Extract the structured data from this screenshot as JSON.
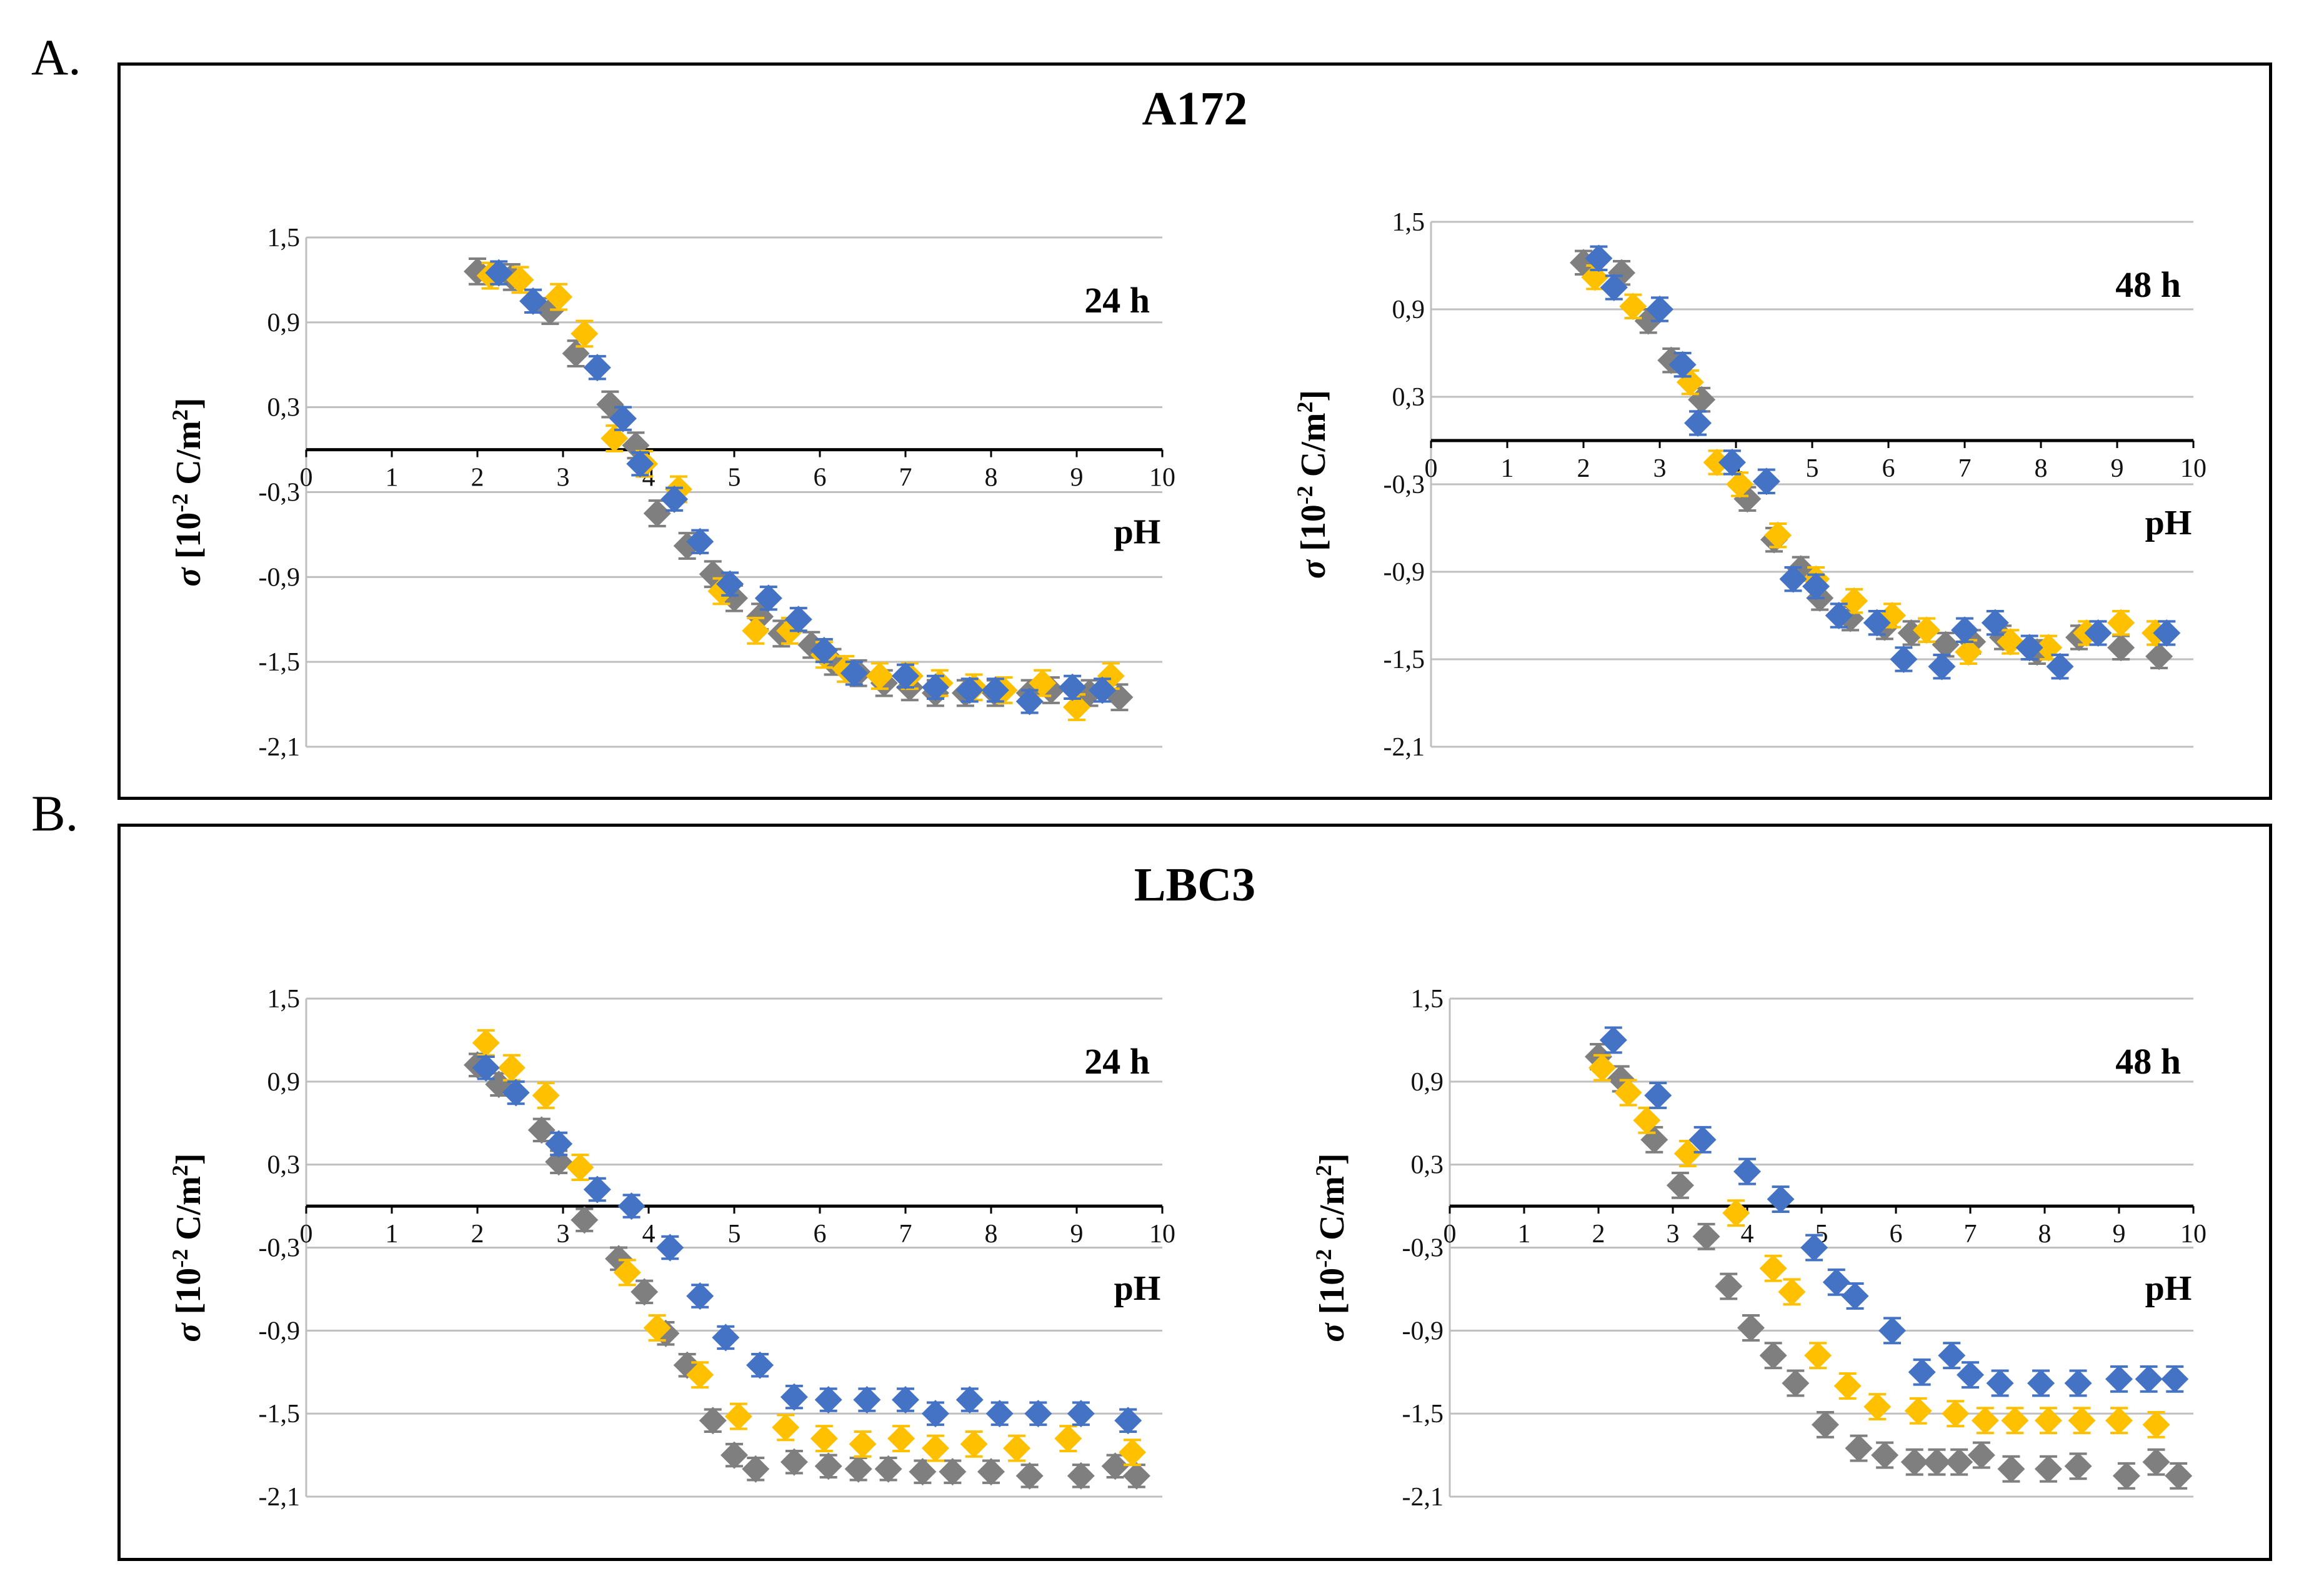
{
  "figure": {
    "panel_a_letter": "A.",
    "panel_b_letter": "B.",
    "panel_a_title": "A172",
    "panel_b_title": "LBC3"
  },
  "colors": {
    "blue": "#4472C4",
    "orange": "#FFC000",
    "gray": "#7F7F7F"
  },
  "chart_data": [
    {
      "id": "a172_24h",
      "type": "scatter",
      "title": "24 h",
      "xlabel": "pH",
      "ylabel": "σ [10-2 C/m2]",
      "xlim": [
        0,
        10
      ],
      "ylim": [
        -2.1,
        1.5
      ],
      "xticks": [
        "0",
        "1",
        "2",
        "3",
        "4",
        "5",
        "6",
        "7",
        "8",
        "9",
        "10"
      ],
      "yticks": [
        "1,5",
        "0,9",
        "0,3",
        "-0,3",
        "-0,9",
        "-1,5",
        "-2,1"
      ],
      "series": [
        {
          "name": "gray",
          "color": "#7F7F7F",
          "err": 0.09,
          "x": [
            2.0,
            2.4,
            2.85,
            3.15,
            3.55,
            3.85,
            4.1,
            4.45,
            4.75,
            5.0,
            5.3,
            5.55,
            5.9,
            6.15,
            6.45,
            6.75,
            7.05,
            7.35,
            7.7,
            8.05,
            8.45,
            8.7,
            9.15,
            9.5
          ],
          "y": [
            1.26,
            1.22,
            0.98,
            0.68,
            0.32,
            0.03,
            -0.45,
            -0.68,
            -0.88,
            -1.05,
            -1.18,
            -1.3,
            -1.38,
            -1.5,
            -1.58,
            -1.65,
            -1.68,
            -1.72,
            -1.72,
            -1.72,
            -1.72,
            -1.7,
            -1.72,
            -1.75
          ]
        },
        {
          "name": "orange",
          "color": "#FFC000",
          "err": 0.09,
          "x": [
            2.15,
            2.5,
            2.95,
            3.25,
            3.6,
            3.95,
            4.35,
            4.85,
            5.25,
            5.65,
            6.05,
            6.3,
            6.7,
            7.05,
            7.4,
            7.8,
            8.15,
            8.6,
            9.0,
            9.4
          ],
          "y": [
            1.23,
            1.2,
            1.08,
            0.82,
            0.08,
            -0.1,
            -0.28,
            -1.0,
            -1.28,
            -1.28,
            -1.45,
            -1.55,
            -1.6,
            -1.6,
            -1.65,
            -1.68,
            -1.7,
            -1.65,
            -1.82,
            -1.6
          ]
        },
        {
          "name": "blue",
          "color": "#4472C4",
          "err": 0.08,
          "x": [
            2.25,
            2.65,
            3.4,
            3.7,
            3.9,
            4.3,
            4.6,
            4.95,
            5.4,
            5.75,
            6.05,
            6.4,
            7.0,
            7.35,
            7.75,
            8.05,
            8.45,
            8.95,
            9.3
          ],
          "y": [
            1.25,
            1.05,
            0.58,
            0.22,
            -0.1,
            -0.35,
            -0.65,
            -0.95,
            -1.05,
            -1.2,
            -1.42,
            -1.58,
            -1.6,
            -1.68,
            -1.7,
            -1.7,
            -1.78,
            -1.68,
            -1.7
          ]
        }
      ]
    },
    {
      "id": "a172_48h",
      "type": "scatter",
      "title": "48 h",
      "xlabel": "pH",
      "ylabel": "σ [10-2 C/m2]",
      "xlim": [
        0,
        10
      ],
      "ylim": [
        -2.1,
        1.5
      ],
      "xticks": [
        "0",
        "1",
        "2",
        "3",
        "4",
        "5",
        "6",
        "7",
        "8",
        "9",
        "10"
      ],
      "yticks": [
        "1,5",
        "0,9",
        "0,3",
        "-0,3",
        "-0,9",
        "-1,5",
        "-2,1"
      ],
      "series": [
        {
          "name": "gray",
          "color": "#7F7F7F",
          "err": 0.08,
          "x": [
            2.0,
            2.5,
            2.85,
            3.15,
            3.55,
            4.15,
            4.5,
            4.85,
            5.1,
            5.5,
            5.95,
            6.3,
            6.75,
            7.1,
            7.5,
            7.95,
            8.5,
            9.05,
            9.55
          ],
          "y": [
            1.22,
            1.15,
            0.82,
            0.55,
            0.28,
            -0.4,
            -0.68,
            -0.88,
            -1.08,
            -1.22,
            -1.28,
            -1.32,
            -1.4,
            -1.38,
            -1.35,
            -1.45,
            -1.35,
            -1.42,
            -1.48
          ]
        },
        {
          "name": "orange",
          "color": "#FFC000",
          "err": 0.08,
          "x": [
            2.15,
            2.65,
            3.4,
            3.75,
            4.05,
            4.55,
            5.05,
            5.55,
            6.05,
            6.5,
            7.05,
            7.6,
            8.1,
            8.6,
            9.05,
            9.5
          ],
          "y": [
            1.12,
            0.92,
            0.4,
            -0.15,
            -0.3,
            -0.65,
            -0.95,
            -1.1,
            -1.2,
            -1.3,
            -1.45,
            -1.38,
            -1.42,
            -1.32,
            -1.25,
            -1.32
          ]
        },
        {
          "name": "blue",
          "color": "#4472C4",
          "err": 0.08,
          "x": [
            2.2,
            2.4,
            3.0,
            3.3,
            3.5,
            3.95,
            4.4,
            4.75,
            5.05,
            5.35,
            5.85,
            6.2,
            6.7,
            7.0,
            7.4,
            7.85,
            8.25,
            8.75,
            9.65
          ],
          "y": [
            1.25,
            1.05,
            0.9,
            0.52,
            0.12,
            -0.15,
            -0.28,
            -0.95,
            -1.0,
            -1.2,
            -1.25,
            -1.5,
            -1.55,
            -1.3,
            -1.25,
            -1.42,
            -1.55,
            -1.32,
            -1.32
          ]
        }
      ]
    },
    {
      "id": "lbc3_24h",
      "type": "scatter",
      "title": "24 h",
      "xlabel": "pH",
      "ylabel": "σ [10-2 C/m2]",
      "xlim": [
        0,
        10
      ],
      "ylim": [
        -2.1,
        1.5
      ],
      "xticks": [
        "0",
        "1",
        "2",
        "3",
        "4",
        "5",
        "6",
        "7",
        "8",
        "9",
        "10"
      ],
      "yticks": [
        "1,5",
        "0,9",
        "0,3",
        "-0,3",
        "-0,9",
        "-1,5",
        "-2,1"
      ],
      "series": [
        {
          "name": "gray",
          "color": "#7F7F7F",
          "err": 0.08,
          "x": [
            2.0,
            2.25,
            2.75,
            2.95,
            3.25,
            3.65,
            3.95,
            4.2,
            4.45,
            4.75,
            5.0,
            5.25,
            5.7,
            6.1,
            6.45,
            6.8,
            7.2,
            7.55,
            8.0,
            8.45,
            9.05,
            9.45,
            9.7
          ],
          "y": [
            1.02,
            0.88,
            0.55,
            0.32,
            -0.1,
            -0.38,
            -0.62,
            -0.92,
            -1.15,
            -1.55,
            -1.8,
            -1.9,
            -1.85,
            -1.88,
            -1.9,
            -1.9,
            -1.92,
            -1.92,
            -1.92,
            -1.95,
            -1.95,
            -1.88,
            -1.95
          ]
        },
        {
          "name": "orange",
          "color": "#FFC000",
          "err": 0.09,
          "x": [
            2.1,
            2.4,
            2.8,
            3.2,
            3.75,
            4.1,
            4.6,
            5.05,
            5.6,
            6.05,
            6.5,
            6.95,
            7.35,
            7.8,
            8.3,
            8.9,
            9.65
          ],
          "y": [
            1.18,
            1.0,
            0.8,
            0.28,
            -0.48,
            -0.88,
            -1.22,
            -1.52,
            -1.6,
            -1.68,
            -1.72,
            -1.68,
            -1.75,
            -1.72,
            -1.75,
            -1.68,
            -1.78
          ]
        },
        {
          "name": "blue",
          "color": "#4472C4",
          "err": 0.08,
          "x": [
            2.1,
            2.45,
            2.95,
            3.4,
            3.8,
            4.25,
            4.6,
            4.9,
            5.3,
            5.7,
            6.1,
            6.55,
            7.0,
            7.35,
            7.75,
            8.1,
            8.55,
            9.05,
            9.6
          ],
          "y": [
            1.0,
            0.82,
            0.45,
            0.12,
            0.0,
            -0.3,
            -0.65,
            -0.95,
            -1.15,
            -1.38,
            -1.4,
            -1.4,
            -1.4,
            -1.5,
            -1.4,
            -1.5,
            -1.5,
            -1.5,
            -1.55
          ]
        }
      ]
    },
    {
      "id": "lbc3_48h",
      "type": "scatter",
      "title": "48 h",
      "xlabel": "pH",
      "ylabel": "σ [10-2 C/m2]",
      "xlim": [
        0,
        10
      ],
      "ylim": [
        -2.1,
        1.5
      ],
      "xticks": [
        "0",
        "1",
        "2",
        "3",
        "4",
        "5",
        "6",
        "7",
        "8",
        "9",
        "10"
      ],
      "yticks": [
        "1,5",
        "0,9",
        "0,3",
        "-0,3",
        "-0,9",
        "-1,5",
        "-2,1"
      ],
      "series": [
        {
          "name": "gray",
          "color": "#7F7F7F",
          "err": 0.09,
          "x": [
            2.0,
            2.3,
            2.75,
            3.1,
            3.45,
            3.75,
            4.05,
            4.35,
            4.65,
            5.05,
            5.5,
            5.85,
            6.25,
            6.55,
            6.85,
            7.15,
            7.55,
            8.05,
            8.45,
            9.1,
            9.5,
            9.8
          ],
          "y": [
            1.08,
            0.92,
            0.48,
            0.15,
            -0.22,
            -0.58,
            -0.88,
            -1.08,
            -1.28,
            -1.58,
            -1.75,
            -1.8,
            -1.85,
            -1.85,
            -1.85,
            -1.8,
            -1.9,
            -1.9,
            -1.88,
            -1.95,
            -1.85,
            -1.95
          ]
        },
        {
          "name": "orange",
          "color": "#FFC000",
          "err": 0.09,
          "x": [
            2.05,
            2.4,
            2.65,
            3.2,
            3.85,
            4.35,
            4.6,
            4.95,
            5.35,
            5.75,
            6.3,
            6.8,
            7.2,
            7.6,
            8.05,
            8.5,
            9.0,
            9.5
          ],
          "y": [
            1.0,
            0.82,
            0.62,
            0.38,
            -0.05,
            -0.45,
            -0.62,
            -1.08,
            -1.3,
            -1.45,
            -1.48,
            -1.5,
            -1.55,
            -1.55,
            -1.55,
            -1.55,
            -1.55,
            -1.58
          ]
        },
        {
          "name": "blue",
          "color": "#4472C4",
          "err": 0.09,
          "x": [
            2.2,
            2.8,
            3.4,
            4.0,
            4.45,
            4.9,
            5.2,
            5.45,
            5.95,
            6.35,
            6.75,
            7.0,
            7.4,
            7.95,
            8.45,
            9.0,
            9.4,
            9.75
          ],
          "y": [
            1.2,
            0.8,
            0.48,
            0.25,
            0.05,
            -0.3,
            -0.55,
            -0.65,
            -0.9,
            -1.2,
            -1.08,
            -1.22,
            -1.28,
            -1.28,
            -1.28,
            -1.25,
            -1.25,
            -1.25
          ]
        }
      ]
    }
  ]
}
